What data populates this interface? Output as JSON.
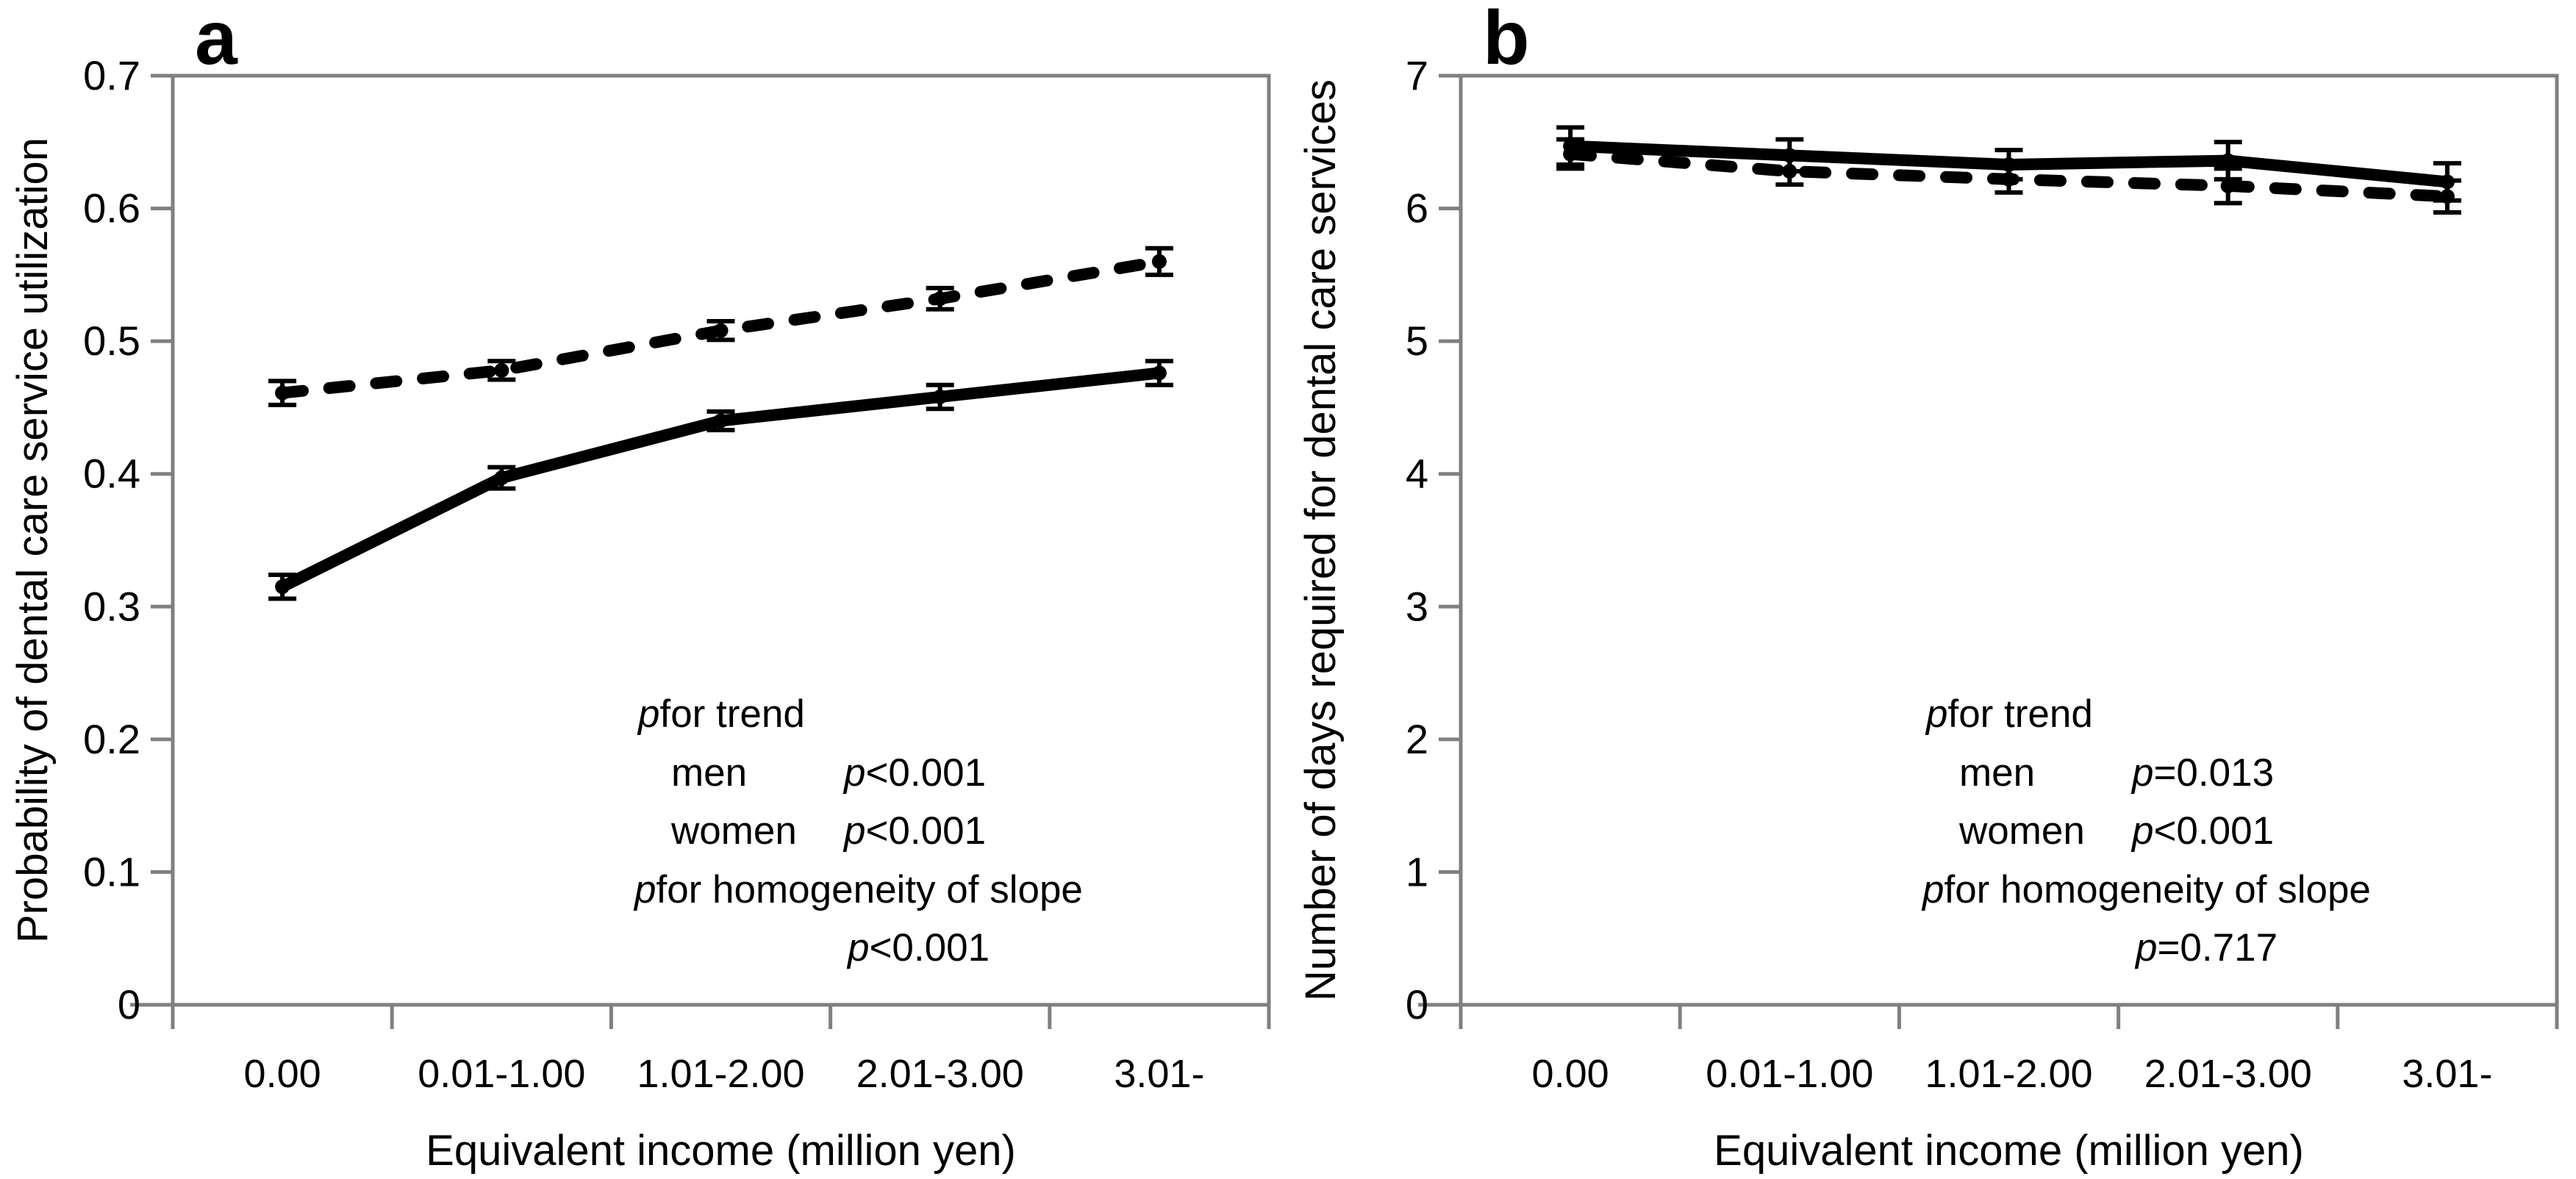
{
  "colors": {
    "axis": "#808080",
    "series": "#000000",
    "text": "#000000",
    "background": "#ffffff"
  },
  "chart_data": [
    {
      "type": "line",
      "panel_label": "a",
      "xlabel": "Equivalent income (million yen)",
      "ylabel": "Probability of dental care service utilization",
      "ylim": [
        0,
        0.7
      ],
      "ytick_labels": [
        "0",
        "0.1",
        "0.2",
        "0.3",
        "0.4",
        "0.5",
        "0.6",
        "0.7"
      ],
      "categories": [
        "0.00",
        "0.01-1.00",
        "1.01-2.00",
        "2.01-3.00",
        "3.01-"
      ],
      "grid": false,
      "legend": "none",
      "series": [
        {
          "name": "men",
          "line_style": "solid",
          "values": [
            0.315,
            0.397,
            0.44,
            0.458,
            0.476
          ],
          "errors": [
            0.009,
            0.008,
            0.007,
            0.009,
            0.009
          ]
        },
        {
          "name": "women",
          "line_style": "dashed",
          "values": [
            0.461,
            0.478,
            0.508,
            0.532,
            0.56
          ],
          "errors": [
            0.009,
            0.007,
            0.007,
            0.008,
            0.01
          ]
        }
      ],
      "note": {
        "p": "p",
        "trend": " for trend",
        "men_label": "men",
        "men_value": "<0.001",
        "women_label": "women",
        "women_value": "<0.001",
        "homogeneity": " for homogeneity of slope",
        "slope_value": "<0.001"
      }
    },
    {
      "type": "line",
      "panel_label": "b",
      "xlabel": "Equivalent income (million yen)",
      "ylabel": "Number of days required for dental care services",
      "ylim": [
        0,
        7
      ],
      "ytick_labels": [
        "0",
        "1",
        "2",
        "3",
        "4",
        "5",
        "6",
        "7"
      ],
      "categories": [
        "0.00",
        "0.01-1.00",
        "1.01-2.00",
        "2.01-3.00",
        "3.01-"
      ],
      "grid": false,
      "legend": "none",
      "series": [
        {
          "name": "men",
          "line_style": "solid",
          "values": [
            6.47,
            6.4,
            6.33,
            6.36,
            6.2
          ],
          "errors": [
            0.14,
            0.12,
            0.11,
            0.14,
            0.14
          ]
        },
        {
          "name": "women",
          "line_style": "dashed",
          "values": [
            6.41,
            6.28,
            6.22,
            6.17,
            6.09
          ],
          "errors": [
            0.11,
            0.1,
            0.1,
            0.13,
            0.12
          ]
        }
      ],
      "note": {
        "p": "p",
        "trend": " for trend",
        "men_label": "men",
        "men_value": "=0.013",
        "women_label": "women",
        "women_value": "<0.001",
        "homogeneity": " for homogeneity of slope",
        "slope_value": "=0.717"
      }
    }
  ]
}
